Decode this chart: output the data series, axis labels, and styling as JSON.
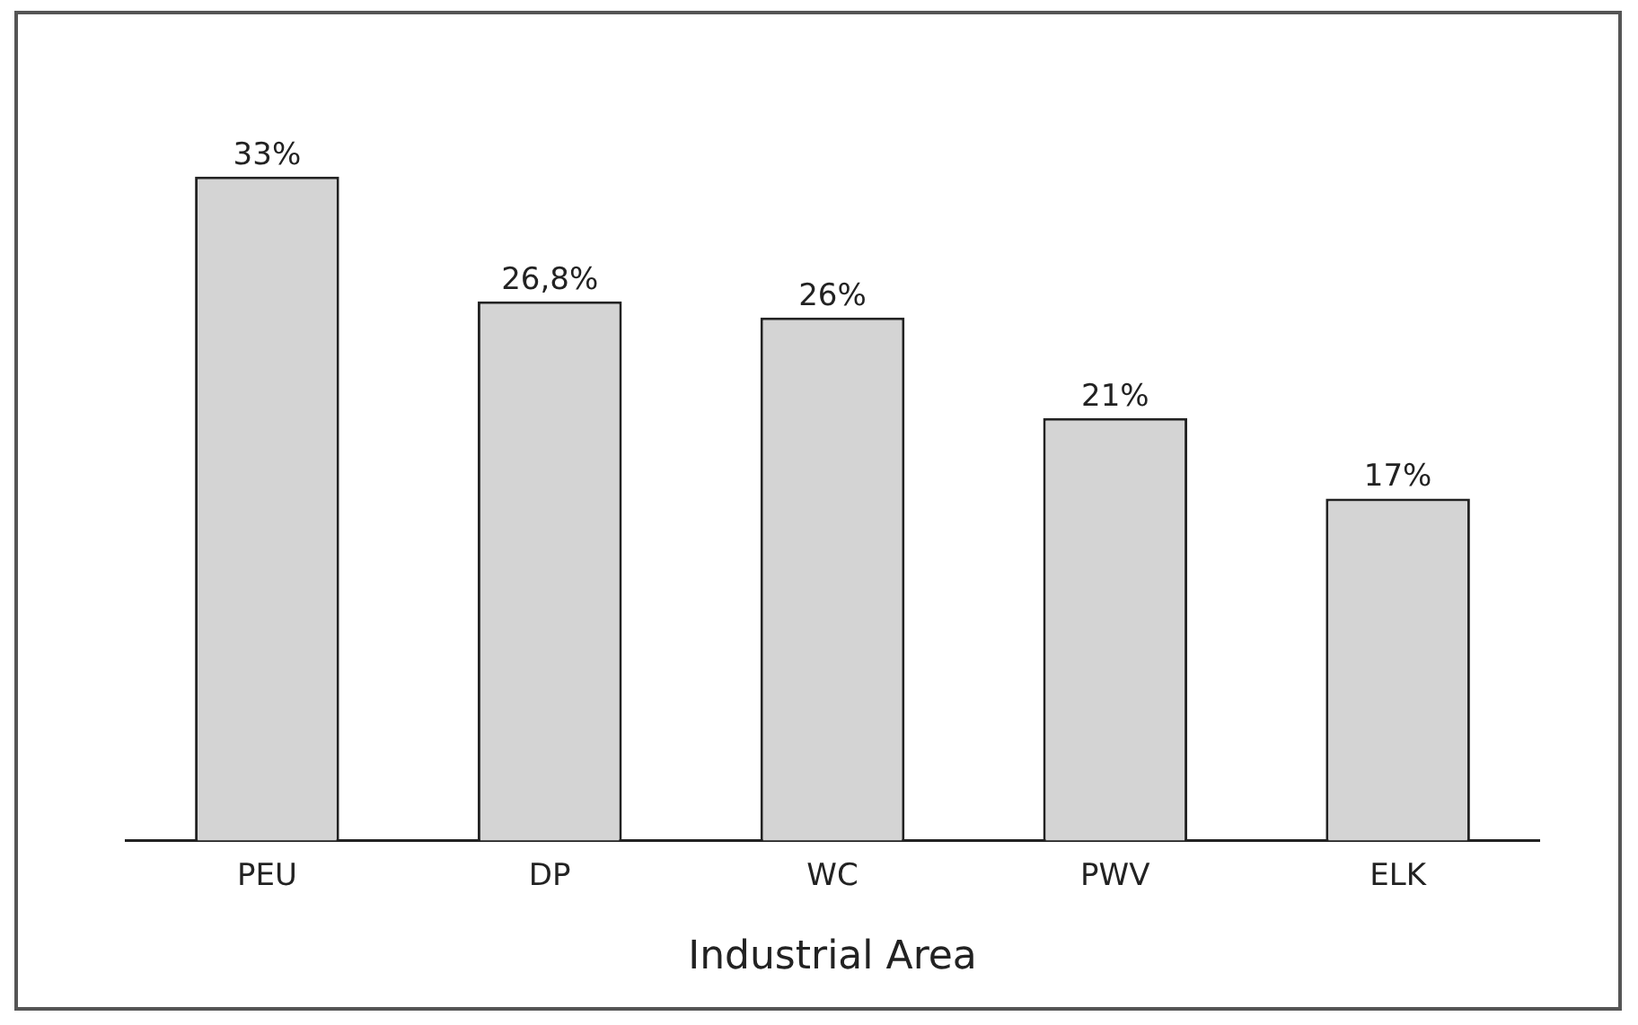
{
  "chart_data": {
    "type": "bar",
    "xlabel": "Industrial Area",
    "categories": [
      "PEU",
      "DP",
      "WC",
      "PWV",
      "ELK"
    ],
    "values": [
      33,
      26.8,
      26,
      21,
      17
    ],
    "value_labels": [
      "33%",
      "26,8%",
      "26%",
      "21%",
      "17%"
    ],
    "color": "#d4d4d4",
    "grid": false,
    "legend": false
  }
}
